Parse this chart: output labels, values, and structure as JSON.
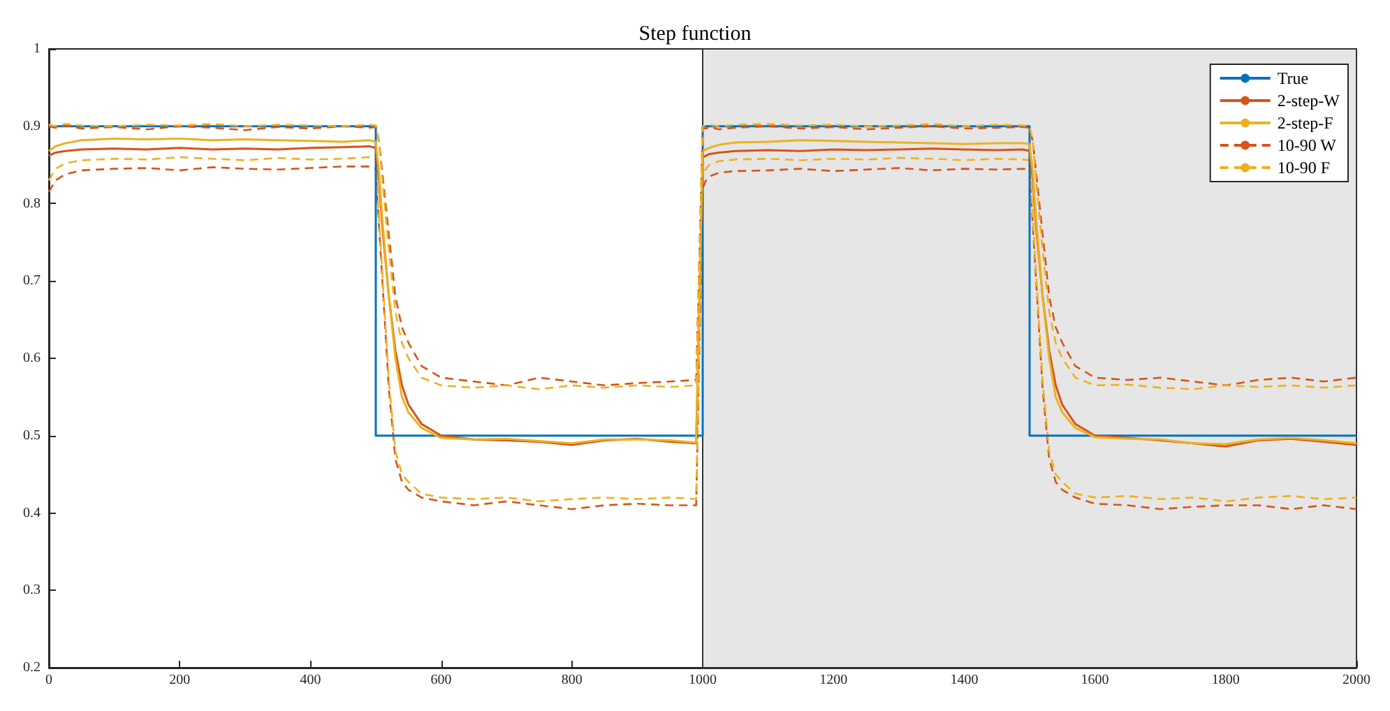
{
  "chart_data": {
    "type": "line",
    "title": "Step function",
    "x": [
      0,
      10,
      25,
      50,
      100,
      150,
      200,
      250,
      300,
      350,
      400,
      450,
      490,
      500,
      505,
      510,
      520,
      530,
      540,
      550,
      570,
      600,
      650,
      700,
      750,
      800,
      850,
      900,
      950,
      990,
      1000,
      1005,
      1010,
      1025,
      1050,
      1100,
      1150,
      1200,
      1250,
      1300,
      1350,
      1400,
      1450,
      1490,
      1500,
      1505,
      1510,
      1520,
      1530,
      1540,
      1550,
      1570,
      1600,
      1650,
      1700,
      1750,
      1800,
      1850,
      1900,
      1950,
      2000
    ],
    "series": [
      {
        "name": "True",
        "color": "#0072bd",
        "line_style": "solid",
        "x": [
          0,
          500,
          500,
          1000,
          1000,
          1500,
          1500,
          2000
        ],
        "values": [
          0.9,
          0.9,
          0.5,
          0.5,
          0.9,
          0.9,
          0.5,
          0.5
        ]
      },
      {
        "name": "2-step-W",
        "color": "#d95319",
        "line_style": "solid",
        "values": [
          0.862,
          0.866,
          0.868,
          0.87,
          0.871,
          0.87,
          0.872,
          0.87,
          0.871,
          0.87,
          0.872,
          0.873,
          0.874,
          0.872,
          0.83,
          0.77,
          0.68,
          0.61,
          0.565,
          0.54,
          0.515,
          0.5,
          0.495,
          0.494,
          0.492,
          0.488,
          0.494,
          0.496,
          0.492,
          0.49,
          0.86,
          0.862,
          0.864,
          0.866,
          0.868,
          0.869,
          0.868,
          0.87,
          0.869,
          0.87,
          0.871,
          0.87,
          0.869,
          0.87,
          0.868,
          0.83,
          0.77,
          0.68,
          0.61,
          0.565,
          0.54,
          0.515,
          0.5,
          0.497,
          0.494,
          0.49,
          0.486,
          0.494,
          0.496,
          0.492,
          0.488
        ]
      },
      {
        "name": "2-step-F",
        "color": "#edb120",
        "line_style": "solid",
        "values": [
          0.868,
          0.874,
          0.878,
          0.882,
          0.884,
          0.883,
          0.884,
          0.882,
          0.883,
          0.882,
          0.881,
          0.88,
          0.882,
          0.88,
          0.84,
          0.78,
          0.68,
          0.6,
          0.55,
          0.53,
          0.51,
          0.497,
          0.495,
          0.496,
          0.493,
          0.49,
          0.495,
          0.495,
          0.494,
          0.491,
          0.868,
          0.87,
          0.872,
          0.876,
          0.879,
          0.88,
          0.882,
          0.881,
          0.88,
          0.879,
          0.878,
          0.877,
          0.878,
          0.878,
          0.877,
          0.84,
          0.78,
          0.68,
          0.6,
          0.55,
          0.53,
          0.51,
          0.498,
          0.496,
          0.495,
          0.49,
          0.489,
          0.495,
          0.497,
          0.494,
          0.49
        ]
      },
      {
        "name": "10-90 W",
        "color": "#d95319",
        "line_style": "dashed",
        "values": [
          0.9,
          0.898,
          0.901,
          0.897,
          0.899,
          0.896,
          0.9,
          0.898,
          0.895,
          0.899,
          0.897,
          0.9,
          0.898,
          0.899,
          0.88,
          0.84,
          0.76,
          0.68,
          0.64,
          0.62,
          0.59,
          0.575,
          0.57,
          0.565,
          0.575,
          0.57,
          0.565,
          0.568,
          0.57,
          0.572,
          0.898,
          0.897,
          0.899,
          0.896,
          0.898,
          0.9,
          0.897,
          0.899,
          0.896,
          0.898,
          0.9,
          0.897,
          0.898,
          0.899,
          0.898,
          0.88,
          0.84,
          0.76,
          0.68,
          0.64,
          0.62,
          0.59,
          0.575,
          0.572,
          0.575,
          0.57,
          0.565,
          0.572,
          0.575,
          0.57,
          0.575
        ]
      },
      {
        "name": "10-90 F",
        "color": "#edb120",
        "line_style": "dashed",
        "values": [
          0.902,
          0.9,
          0.903,
          0.901,
          0.9,
          0.902,
          0.901,
          0.903,
          0.9,
          0.902,
          0.901,
          0.9,
          0.902,
          0.901,
          0.88,
          0.83,
          0.74,
          0.66,
          0.62,
          0.6,
          0.575,
          0.565,
          0.562,
          0.565,
          0.56,
          0.565,
          0.562,
          0.565,
          0.563,
          0.565,
          0.9,
          0.901,
          0.902,
          0.9,
          0.902,
          0.903,
          0.901,
          0.902,
          0.9,
          0.901,
          0.903,
          0.9,
          0.902,
          0.901,
          0.9,
          0.88,
          0.83,
          0.74,
          0.66,
          0.62,
          0.6,
          0.575,
          0.565,
          0.566,
          0.562,
          0.56,
          0.565,
          0.563,
          0.565,
          0.562,
          0.565
        ]
      },
      {
        "color": "#d95319",
        "line_style": "dashed",
        "values": [
          0.815,
          0.83,
          0.838,
          0.843,
          0.845,
          0.846,
          0.843,
          0.847,
          0.845,
          0.844,
          0.846,
          0.848,
          0.848,
          0.845,
          0.77,
          0.7,
          0.56,
          0.47,
          0.44,
          0.43,
          0.42,
          0.415,
          0.41,
          0.415,
          0.41,
          0.405,
          0.41,
          0.412,
          0.41,
          0.41,
          0.82,
          0.83,
          0.835,
          0.84,
          0.842,
          0.843,
          0.845,
          0.842,
          0.844,
          0.846,
          0.843,
          0.845,
          0.844,
          0.845,
          0.844,
          0.77,
          0.7,
          0.56,
          0.47,
          0.44,
          0.43,
          0.42,
          0.412,
          0.41,
          0.405,
          0.408,
          0.41,
          0.41,
          0.405,
          0.41,
          0.405
        ]
      },
      {
        "color": "#edb120",
        "line_style": "dashed",
        "values": [
          0.83,
          0.845,
          0.852,
          0.856,
          0.858,
          0.857,
          0.86,
          0.858,
          0.856,
          0.859,
          0.857,
          0.858,
          0.86,
          0.858,
          0.78,
          0.71,
          0.57,
          0.48,
          0.45,
          0.44,
          0.425,
          0.42,
          0.418,
          0.42,
          0.415,
          0.418,
          0.42,
          0.418,
          0.42,
          0.418,
          0.835,
          0.845,
          0.85,
          0.855,
          0.857,
          0.858,
          0.856,
          0.858,
          0.857,
          0.859,
          0.858,
          0.856,
          0.858,
          0.857,
          0.856,
          0.78,
          0.71,
          0.57,
          0.48,
          0.45,
          0.44,
          0.425,
          0.42,
          0.422,
          0.418,
          0.42,
          0.415,
          0.42,
          0.422,
          0.418,
          0.42
        ]
      }
    ],
    "xlim": [
      0,
      2000
    ],
    "xticks": [
      0,
      200,
      400,
      600,
      800,
      1000,
      1200,
      1400,
      1600,
      1800,
      2000
    ],
    "ylim": [
      0.2,
      1
    ],
    "yticks": [
      0.2,
      0.3,
      0.4,
      0.5,
      0.6,
      0.7,
      0.8,
      0.9,
      1
    ],
    "bands": [
      {
        "axis": "x",
        "from": 1000,
        "to": 2000,
        "color": "#e6e6e6"
      }
    ],
    "grid": false,
    "legend": "top right",
    "marker": "none"
  }
}
